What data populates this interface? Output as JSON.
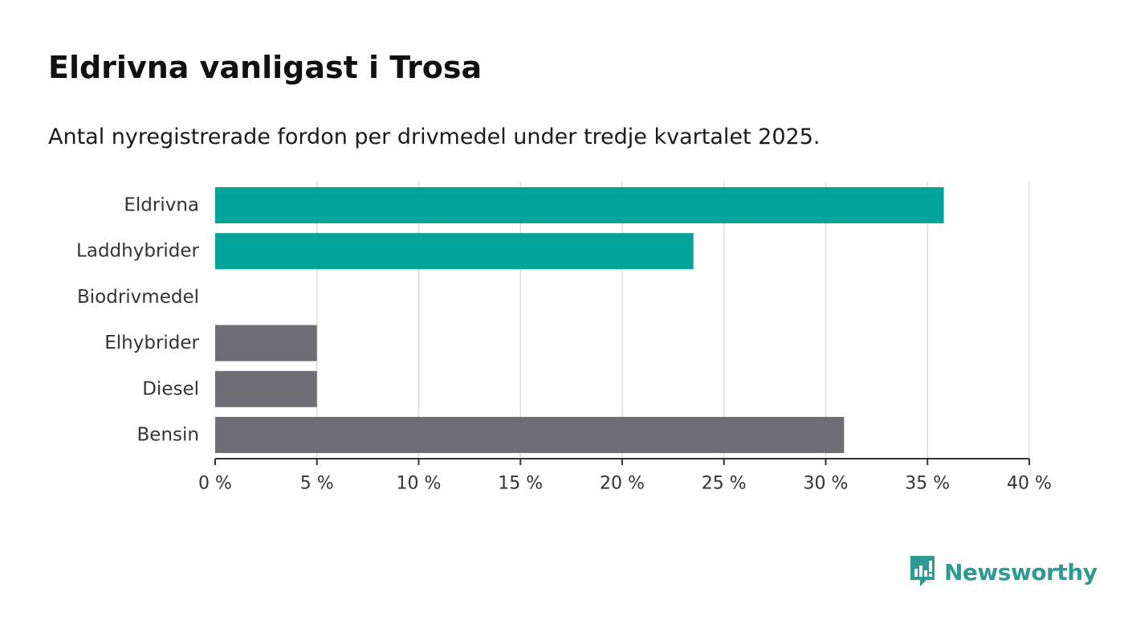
{
  "header": {
    "title": "Eldrivna vanligast i Trosa",
    "subtitle": "Antal nyregistrerade fordon per drivmedel under tredje kvartalet 2025."
  },
  "brand": {
    "name": "Newsworthy",
    "icon": "newsworthy-logo-icon"
  },
  "colors": {
    "highlight": "#00a49a",
    "neutral": "#706e75",
    "grid": "#dddddd",
    "axis": "#333333",
    "brand": "#2f9a93"
  },
  "chart_data": {
    "type": "bar",
    "orientation": "horizontal",
    "categories": [
      "Eldrivna",
      "Laddhybrider",
      "Biodrivmedel",
      "Elhybrider",
      "Diesel",
      "Bensin"
    ],
    "values": [
      35.8,
      23.5,
      0,
      5.0,
      5.0,
      30.9
    ],
    "bar_colors": [
      "#00a49a",
      "#00a49a",
      "#706e75",
      "#706e75",
      "#706e75",
      "#706e75"
    ],
    "xlim": [
      0,
      40
    ],
    "xticks": [
      0,
      5,
      10,
      15,
      20,
      25,
      30,
      35,
      40
    ],
    "xtick_labels": [
      "0 %",
      "5 %",
      "10 %",
      "15 %",
      "20 %",
      "25 %",
      "30 %",
      "35 %",
      "40 %"
    ],
    "grid": true,
    "legend": "none",
    "title": "Eldrivna vanligast i Trosa",
    "xlabel": "",
    "ylabel": ""
  }
}
